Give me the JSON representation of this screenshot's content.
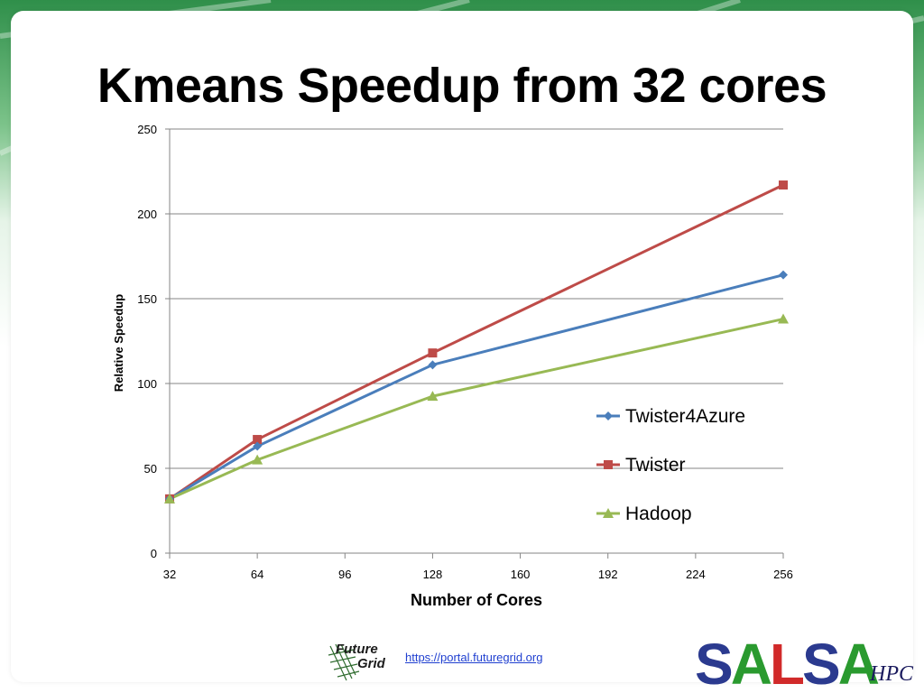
{
  "slide": {
    "title": "Kmeans Speedup from 32 cores",
    "footer_link": "https://portal.futuregrid.org",
    "logo_left_text": [
      "Future",
      "Grid"
    ],
    "logo_right_text": [
      "SALSA",
      "HPC"
    ]
  },
  "colors": {
    "twister4azure": "#4a7ebb",
    "twister": "#be4b48",
    "hadoop": "#98b954",
    "gridline": "#868686",
    "salsa_s": "#2b3a8f",
    "salsa_a": "#2a9a2f",
    "salsa_l": "#d12a2a",
    "hpc": "#1b1b5e"
  },
  "chart_data": {
    "type": "line",
    "xlabel": "Number of Cores",
    "ylabel": "Relative Speedup",
    "x_ticks": [
      32,
      64,
      96,
      128,
      160,
      192,
      224,
      256
    ],
    "y_ticks": [
      0,
      50,
      100,
      150,
      200,
      250
    ],
    "xlim": [
      32,
      256
    ],
    "ylim": [
      0,
      250
    ],
    "grid": "horizontal",
    "legend_position": "right",
    "series": [
      {
        "name": "Twister4Azure",
        "marker": "diamond",
        "x": [
          32,
          64,
          128,
          256
        ],
        "y": [
          32,
          63,
          111,
          164
        ]
      },
      {
        "name": "Twister",
        "marker": "square",
        "x": [
          32,
          64,
          128,
          256
        ],
        "y": [
          32,
          67,
          118,
          217
        ]
      },
      {
        "name": "Hadoop",
        "marker": "triangle",
        "x": [
          32,
          64,
          128,
          256
        ],
        "y": [
          32,
          55,
          92.5,
          138
        ]
      }
    ]
  }
}
